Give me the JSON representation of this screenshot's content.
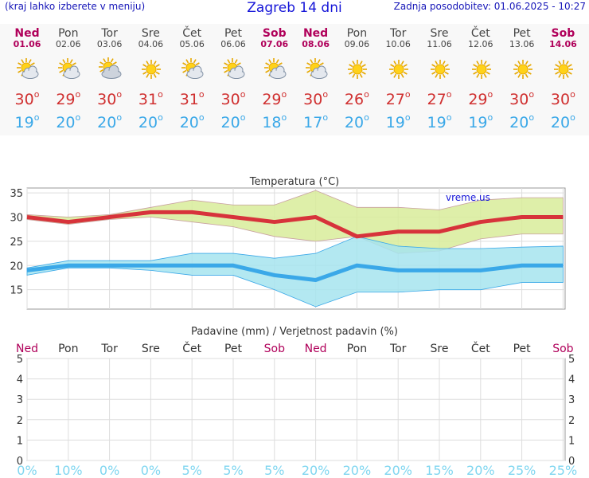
{
  "header": {
    "note": "(kraj lahko izberete v meniju)",
    "title": "Zagreb 14 dni",
    "update": "Zadnja posodobitev: 01.06.2025 - 10:27"
  },
  "colors": {
    "max_line": "#d7333b",
    "min_line": "#3aa8e8",
    "max_band": "#d8ec9a",
    "min_band": "#a6e4ef",
    "weekend": "#b0005a",
    "prob_text": "#7fd6f0"
  },
  "degree_sign": "o",
  "days": [
    {
      "name": "Ned",
      "date": "01.06",
      "weekend": true,
      "icon": "partly-cloudy-sun-icon",
      "max": "30",
      "min": "19"
    },
    {
      "name": "Pon",
      "date": "02.06",
      "weekend": false,
      "icon": "partly-cloudy-sun-icon",
      "max": "29",
      "min": "20"
    },
    {
      "name": "Tor",
      "date": "03.06",
      "weekend": false,
      "icon": "cloudy-sun-icon",
      "max": "30",
      "min": "20"
    },
    {
      "name": "Sre",
      "date": "04.06",
      "weekend": false,
      "icon": "sun-icon",
      "max": "31",
      "min": "20"
    },
    {
      "name": "Čet",
      "date": "05.06",
      "weekend": false,
      "icon": "partly-cloudy-sun-icon",
      "max": "31",
      "min": "20"
    },
    {
      "name": "Pet",
      "date": "06.06",
      "weekend": false,
      "icon": "partly-cloudy-sun-icon",
      "max": "30",
      "min": "20"
    },
    {
      "name": "Sob",
      "date": "07.06",
      "weekend": true,
      "icon": "partly-cloudy-sun-icon",
      "max": "29",
      "min": "18"
    },
    {
      "name": "Ned",
      "date": "08.06",
      "weekend": true,
      "icon": "partly-cloudy-sun-icon",
      "max": "30",
      "min": "17"
    },
    {
      "name": "Pon",
      "date": "09.06",
      "weekend": false,
      "icon": "sun-icon",
      "max": "26",
      "min": "20"
    },
    {
      "name": "Tor",
      "date": "10.06",
      "weekend": false,
      "icon": "sun-icon",
      "max": "27",
      "min": "19"
    },
    {
      "name": "Sre",
      "date": "11.06",
      "weekend": false,
      "icon": "sun-icon",
      "max": "27",
      "min": "19"
    },
    {
      "name": "Čet",
      "date": "12.06",
      "weekend": false,
      "icon": "sun-icon",
      "max": "29",
      "min": "19"
    },
    {
      "name": "Pet",
      "date": "13.06",
      "weekend": false,
      "icon": "sun-icon",
      "max": "30",
      "min": "20"
    },
    {
      "name": "Sob",
      "date": "14.06",
      "weekend": true,
      "icon": "sun-icon",
      "max": "30",
      "min": "20"
    }
  ],
  "chart_data": [
    {
      "type": "line",
      "title": "Temperatura (°C)",
      "watermark": "vreme.us",
      "categories": [
        "01.06",
        "02.06",
        "03.06",
        "04.06",
        "05.06",
        "06.06",
        "07.06",
        "08.06",
        "09.06",
        "10.06",
        "11.06",
        "12.06",
        "13.06",
        "14.06"
      ],
      "ylim": [
        11,
        36
      ],
      "yticks": [
        15,
        20,
        25,
        30,
        35
      ],
      "grid": true,
      "series": [
        {
          "role": "max",
          "values": [
            30,
            29,
            30,
            31,
            31,
            30,
            29,
            30,
            26,
            27,
            27,
            29,
            30,
            30
          ]
        },
        {
          "role": "max_range_high",
          "values": [
            30.5,
            30,
            30.5,
            32,
            33.5,
            32.5,
            32.5,
            35.5,
            32,
            32,
            31.5,
            33.5,
            34,
            34
          ]
        },
        {
          "role": "max_range_low",
          "values": [
            29.5,
            28.5,
            29.5,
            30,
            29,
            28,
            26,
            25,
            26,
            22.5,
            23,
            25.5,
            26.5,
            26.5
          ]
        },
        {
          "role": "min",
          "values": [
            19,
            20,
            20,
            20,
            20,
            20,
            18,
            17,
            20,
            19,
            19,
            19,
            20,
            20
          ]
        },
        {
          "role": "min_range_high",
          "values": [
            19.5,
            21,
            21,
            21,
            22.5,
            22.5,
            21.5,
            22.5,
            26,
            24,
            23.5,
            23.5,
            23.8,
            24
          ]
        },
        {
          "role": "min_range_low",
          "values": [
            18,
            19.5,
            19.5,
            19,
            18,
            18,
            15,
            11.5,
            14.5,
            14.5,
            15,
            15,
            16.5,
            16.5
          ]
        }
      ]
    },
    {
      "type": "bar",
      "title": "Padavine (mm) / Verjetnost padavin (%)",
      "categories": [
        "Ned",
        "Pon",
        "Tor",
        "Sre",
        "Čet",
        "Pet",
        "Sob",
        "Ned",
        "Pon",
        "Tor",
        "Sre",
        "Čet",
        "Pet",
        "Sob"
      ],
      "weekend": [
        true,
        false,
        false,
        false,
        false,
        false,
        true,
        true,
        false,
        false,
        false,
        false,
        false,
        true
      ],
      "ylim": [
        0,
        5
      ],
      "yticks": [
        "0",
        "1",
        "2",
        "3",
        "4",
        "5"
      ],
      "precipitation": [
        0,
        0,
        0,
        0,
        0,
        0,
        0,
        0,
        0,
        0,
        0,
        0,
        0,
        0
      ],
      "probability": [
        "0%",
        "10%",
        "0%",
        "0%",
        "5%",
        "5%",
        "5%",
        "20%",
        "20%",
        "20%",
        "15%",
        "20%",
        "25%",
        "25%"
      ]
    }
  ]
}
